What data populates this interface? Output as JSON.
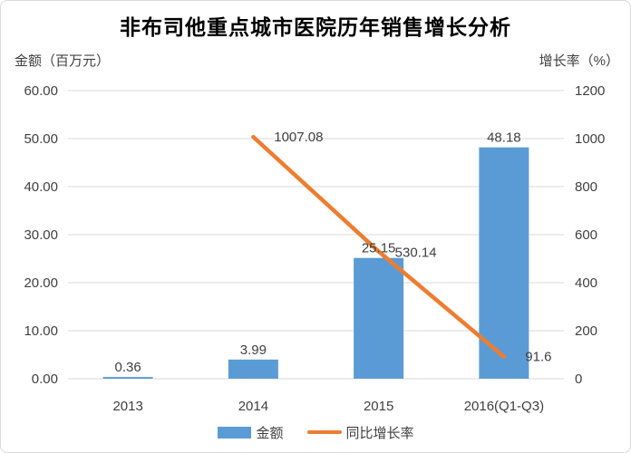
{
  "title": "非布司他重点城市医院历年销售增长分析",
  "left_axis_title": "金额（百万元）",
  "right_axis_title": "增长率（%）",
  "legend": [
    {
      "label": "金额",
      "type": "bar"
    },
    {
      "label": "同比增长率",
      "type": "line"
    }
  ],
  "colors": {
    "bar": "#5B9BD5",
    "line": "#ED7D31",
    "grid": "#D9D9D9",
    "tick_text": "#404040",
    "label_text": "#404040",
    "title_text": "#000000",
    "frame_border": "#D9D9D9"
  },
  "chart_data": {
    "type": "bar+line combo",
    "title": "非布司他重点城市医院历年销售增长分析",
    "categories": [
      "2013",
      "2014",
      "2015",
      "2016(Q1-Q3)"
    ],
    "series": [
      {
        "name": "金额",
        "type": "bar",
        "axis": "left",
        "values": [
          0.36,
          3.99,
          25.15,
          48.18
        ],
        "labels": [
          "0.36",
          "3.99",
          "25.15",
          "48.18"
        ]
      },
      {
        "name": "同比增长率",
        "type": "line",
        "axis": "right",
        "values": [
          null,
          1007.08,
          530.14,
          91.6
        ],
        "labels": [
          null,
          "1007.08",
          "530.14",
          "91.6"
        ]
      }
    ],
    "left_axis": {
      "label": "金额（百万元）",
      "min": 0,
      "max": 60,
      "step": 10,
      "tick_labels": [
        "0.00",
        "10.00",
        "20.00",
        "30.00",
        "40.00",
        "50.00",
        "60.00"
      ]
    },
    "right_axis": {
      "label": "增长率（%）",
      "min": 0,
      "max": 1200,
      "step": 200,
      "tick_labels": [
        "0",
        "200",
        "400",
        "600",
        "800",
        "1000",
        "1200"
      ]
    },
    "grid": true,
    "legend_position": "bottom"
  }
}
